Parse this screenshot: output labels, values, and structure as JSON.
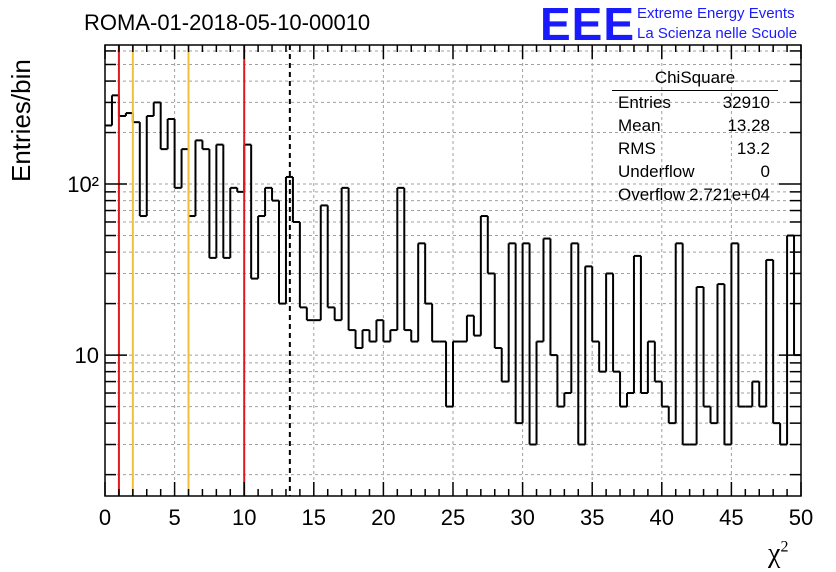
{
  "title": "ROMA-01-2018-05-10-00010",
  "brand": {
    "logo": "EEE",
    "line1": "Extreme Energy Events",
    "line2": "La Scienza nelle Scuole",
    "color": "#1a1aff"
  },
  "stats": {
    "title": "ChiSquare",
    "rows": [
      {
        "key": "Entries",
        "value": "32910"
      },
      {
        "key": "Mean",
        "value": "13.28"
      },
      {
        "key": "RMS",
        "value": "13.2"
      },
      {
        "key": "Underflow",
        "value": "0"
      },
      {
        "key": "Overflow",
        "value": "2.721e+04"
      }
    ]
  },
  "axes": {
    "ylabel": "Entries/bin",
    "xlabel_base": "χ",
    "xlabel_sup": "2"
  },
  "chart_data": {
    "type": "histogram",
    "yscale": "log",
    "xlim": [
      0,
      50
    ],
    "ylim": [
      1.5,
      650
    ],
    "grid": true,
    "bin_width": 0.5,
    "x_ticks": [
      "0",
      "5",
      "10",
      "15",
      "20",
      "25",
      "30",
      "35",
      "40",
      "45",
      "50"
    ],
    "y_tick_labels": [
      {
        "value": 10,
        "label": "10"
      },
      {
        "value": 100,
        "label": "10²"
      }
    ],
    "values": [
      220,
      330,
      250,
      260,
      230,
      65,
      250,
      300,
      160,
      240,
      95,
      160,
      65,
      180,
      160,
      37,
      170,
      37,
      95,
      90,
      170,
      28,
      65,
      95,
      80,
      20,
      110,
      60,
      19,
      16,
      16,
      75,
      19,
      16,
      95,
      14,
      11,
      14,
      12,
      16,
      12,
      14,
      95,
      14,
      12,
      45,
      20,
      12,
      12,
      5,
      12,
      12,
      17,
      13,
      65,
      30,
      11,
      7,
      45,
      4,
      45,
      3,
      12,
      48,
      10,
      5,
      6,
      45,
      3,
      33,
      12,
      8,
      30,
      8,
      5,
      6,
      38,
      6,
      12,
      7,
      5,
      4,
      45,
      3,
      3,
      25,
      5,
      4,
      26,
      3,
      45,
      5,
      5,
      7,
      5,
      36,
      4,
      3,
      50,
      10
    ],
    "vlines": [
      {
        "x": 1,
        "color": "#e0191c",
        "style": "solid"
      },
      {
        "x": 2,
        "color": "#f2c037",
        "style": "solid"
      },
      {
        "x": 6,
        "color": "#f2c037",
        "style": "solid"
      },
      {
        "x": 10,
        "color": "#e0191c",
        "style": "solid"
      },
      {
        "x": 13.28,
        "color": "#000000",
        "style": "dashed"
      }
    ]
  }
}
